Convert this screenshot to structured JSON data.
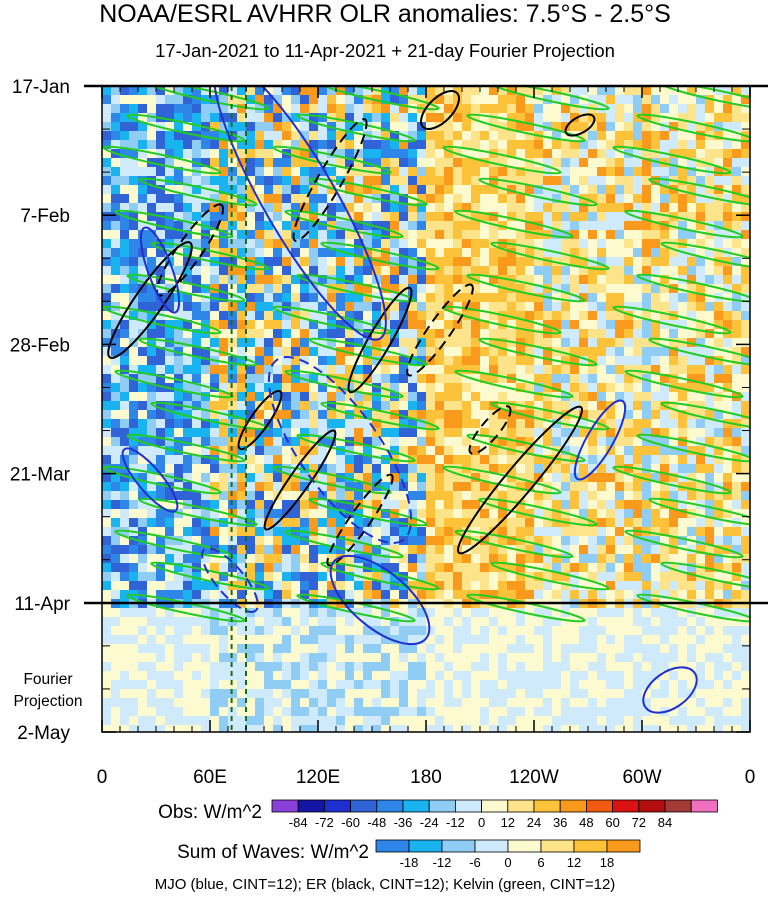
{
  "chart_data": {
    "type": "heatmap",
    "title": "NOAA/ESRL AVHRR OLR anomalies: 7.5°S - 2.5°S",
    "subtitle": "17-Jan-2021 to 11-Apr-2021 + 21-day Fourier Projection",
    "y_ticks": [
      "17-Jan",
      "7-Feb",
      "28-Feb",
      "21-Mar",
      "11-Apr",
      "2-May"
    ],
    "projection_label": [
      "Fourier",
      "Projection"
    ],
    "x_ticks": [
      "0",
      "60E",
      "120E",
      "180",
      "120W",
      "60W",
      "0"
    ],
    "x_range_deg_east": [
      0,
      360
    ],
    "y_range": [
      "17-Jan-2021",
      "2-May-2021"
    ],
    "observed_end": "11-Apr-2021",
    "dashed_lines_deg_east": [
      72,
      80
    ],
    "obs_colorbar": {
      "label": "Obs: W/m^2",
      "ticks": [
        -84,
        -72,
        -60,
        -48,
        -36,
        -24,
        -12,
        0,
        12,
        24,
        36,
        48,
        60,
        72,
        84
      ],
      "colors": [
        "#8b3fd9",
        "#1515a5",
        "#1e2fd0",
        "#2f63d6",
        "#2e86e8",
        "#19b3f0",
        "#8fcdf5",
        "#cfeafa",
        "#fdfad0",
        "#fde38a",
        "#fcc23a",
        "#f99a1c",
        "#f25a0f",
        "#dc1111",
        "#b30d0d",
        "#a33a36",
        "#f070c0"
      ]
    },
    "waves_colorbar": {
      "label": "Sum of Waves: W/m^2",
      "ticks": [
        -18,
        -12,
        -6,
        0,
        6,
        12,
        18
      ],
      "colors": [
        "#2e86e8",
        "#19b3f0",
        "#8fcdf5",
        "#cfeafa",
        "#fdfad0",
        "#fde38a",
        "#fcc23a",
        "#f99a1c"
      ]
    },
    "contours": {
      "MJO": "blue",
      "ER": "black",
      "Kelvin": "green",
      "CINT": 12
    }
  },
  "footer": "MJO (blue, CINT=12); ER (black, CINT=12); Kelvin (green, CINT=12)"
}
